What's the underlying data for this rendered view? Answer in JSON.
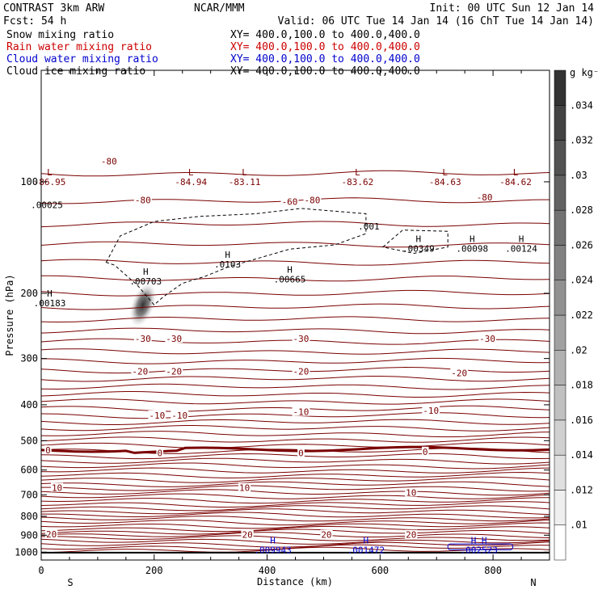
{
  "header": {
    "left_line1": "CONTRAST  3km ARW",
    "center_line1": "NCAR/MMM",
    "right_line1": "Init: 00 UTC Sun 12 Jan 14",
    "left_line2": "Fcst:   54 h",
    "right_line2": "Valid: 06 UTC Tue 14 Jan 14 (16 ChT Tue 14 Jan 14)",
    "fields": [
      {
        "name": "Snow mixing ratio",
        "xy": "XY= 400.0,100.0 to 400.0,400.0",
        "color": "#000000"
      },
      {
        "name": "Rain water mixing ratio",
        "xy": "XY= 400.0,100.0 to 400.0,400.0",
        "color": "#cc0000"
      },
      {
        "name": "Cloud water mixing ratio",
        "xy": "XY= 400.0,100.0 to 400.0,400.0",
        "color": "#0000cc"
      },
      {
        "name": "Cloud ice mixing ratio",
        "xy": "XY= 400.0,100.0 to 400.0,400.0",
        "color": "#000000"
      }
    ]
  },
  "chart_data": {
    "type": "heatmap",
    "subtype": "vertical cross-section, filled contours + line contours",
    "xlabel": "Distance (km)",
    "ylabel": "Pressure (hPa)",
    "xlim": [
      0,
      900
    ],
    "ylim": [
      1050,
      50
    ],
    "y_scale": "log",
    "x_ticks": [
      0,
      200,
      400,
      600,
      800
    ],
    "y_ticks": [
      100,
      200,
      300,
      400,
      500,
      600,
      700,
      800,
      900,
      1000
    ],
    "x_end_labels": {
      "left": "S",
      "right": "N"
    },
    "colorbar": {
      "unit": "g kg⁻¹",
      "ticks": [
        ".01",
        ".012",
        ".014",
        ".016",
        ".018",
        ".02",
        ".022",
        ".024",
        ".026",
        ".028",
        ".03",
        ".032",
        ".034"
      ],
      "values": [
        0.01,
        0.012,
        0.014,
        0.016,
        0.018,
        0.02,
        0.022,
        0.024,
        0.026,
        0.028,
        0.03,
        0.032,
        0.034
      ],
      "color_low": "#ffffff",
      "color_high": "#333333"
    },
    "temperature_contours": {
      "color": "#7a0000",
      "labels": [
        {
          "value": "-80",
          "x": 120,
          "p": 88
        },
        {
          "value": "-80",
          "x": 180,
          "p": 112
        },
        {
          "value": "-60",
          "x": 440,
          "p": 113
        },
        {
          "value": "-80",
          "x": 480,
          "p": 112
        },
        {
          "value": "-80",
          "x": 785,
          "p": 110
        },
        {
          "value": "-30",
          "x": 180,
          "p": 265
        },
        {
          "value": "-30",
          "x": 235,
          "p": 265
        },
        {
          "value": "-30",
          "x": 460,
          "p": 265
        },
        {
          "value": "-30",
          "x": 790,
          "p": 265
        },
        {
          "value": "-20",
          "x": 175,
          "p": 325
        },
        {
          "value": "-20",
          "x": 235,
          "p": 325
        },
        {
          "value": "-20",
          "x": 460,
          "p": 325
        },
        {
          "value": "-20",
          "x": 740,
          "p": 328
        },
        {
          "value": "-10",
          "x": 205,
          "p": 427
        },
        {
          "value": "-10",
          "x": 245,
          "p": 427
        },
        {
          "value": "-10",
          "x": 460,
          "p": 418
        },
        {
          "value": "-10",
          "x": 690,
          "p": 414
        },
        {
          "value": "0",
          "x": 12,
          "p": 530
        },
        {
          "value": "0",
          "x": 210,
          "p": 540
        },
        {
          "value": "0",
          "x": 460,
          "p": 540
        },
        {
          "value": "0",
          "x": 680,
          "p": 535
        },
        {
          "value": "10",
          "x": 28,
          "p": 670
        },
        {
          "value": "10",
          "x": 360,
          "p": 670
        },
        {
          "value": "10",
          "x": 655,
          "p": 690
        },
        {
          "value": "20",
          "x": 18,
          "p": 893
        },
        {
          "value": "20",
          "x": 365,
          "p": 897
        },
        {
          "value": "20",
          "x": 505,
          "p": 897
        },
        {
          "value": "20",
          "x": 655,
          "p": 897
        }
      ]
    },
    "extrema_labels": [
      {
        "mark": "L",
        "value": "-86.95",
        "x": 15,
        "p": 97,
        "color": "#7a0000"
      },
      {
        "mark": "L",
        "value": "-84.94",
        "x": 265,
        "p": 97,
        "color": "#7a0000"
      },
      {
        "mark": "L",
        "value": "-83.11",
        "x": 360,
        "p": 97,
        "color": "#7a0000"
      },
      {
        "mark": "L",
        "value": "-83.62",
        "x": 560,
        "p": 97,
        "color": "#7a0000"
      },
      {
        "mark": "L",
        "value": "-84.63",
        "x": 715,
        "p": 97,
        "color": "#7a0000"
      },
      {
        "mark": "L",
        "value": "-84.62",
        "x": 840,
        "p": 97,
        "color": "#7a0000"
      },
      {
        "mark": "",
        "value": ".00025",
        "x": 10,
        "p": 112,
        "color": "#000000"
      },
      {
        "mark": "H",
        "value": ".00703",
        "x": 185,
        "p": 180,
        "color": "#000000"
      },
      {
        "mark": "H",
        "value": ".0103",
        "x": 330,
        "p": 162,
        "color": "#000000"
      },
      {
        "mark": "H",
        "value": ".00665",
        "x": 440,
        "p": 178,
        "color": "#000000"
      },
      {
        "mark": "H",
        "value": ".00183",
        "x": 15,
        "p": 206,
        "color": "#000000"
      },
      {
        "mark": "",
        "value": ".001",
        "x": 580,
        "p": 128,
        "color": "#000000"
      },
      {
        "mark": "H",
        "value": ".00349",
        "x": 668,
        "p": 147,
        "color": "#000000"
      },
      {
        "mark": "H",
        "value": ".00098",
        "x": 763,
        "p": 147,
        "color": "#000000"
      },
      {
        "mark": "H",
        "value": ".00124",
        "x": 850,
        "p": 147,
        "color": "#000000"
      },
      {
        "mark": "H",
        "value": ".009943",
        "x": 410,
        "p": 957,
        "color": "#0000cc"
      },
      {
        "mark": "H",
        "value": ".001472",
        "x": 575,
        "p": 957,
        "color": "#0000cc"
      },
      {
        "mark": "H H",
        "value": ".002523",
        "x": 775,
        "p": 957,
        "color": "#0000cc"
      }
    ],
    "snow_field": {
      "peak_value": 0.007,
      "x": 180,
      "p": 215
    }
  }
}
